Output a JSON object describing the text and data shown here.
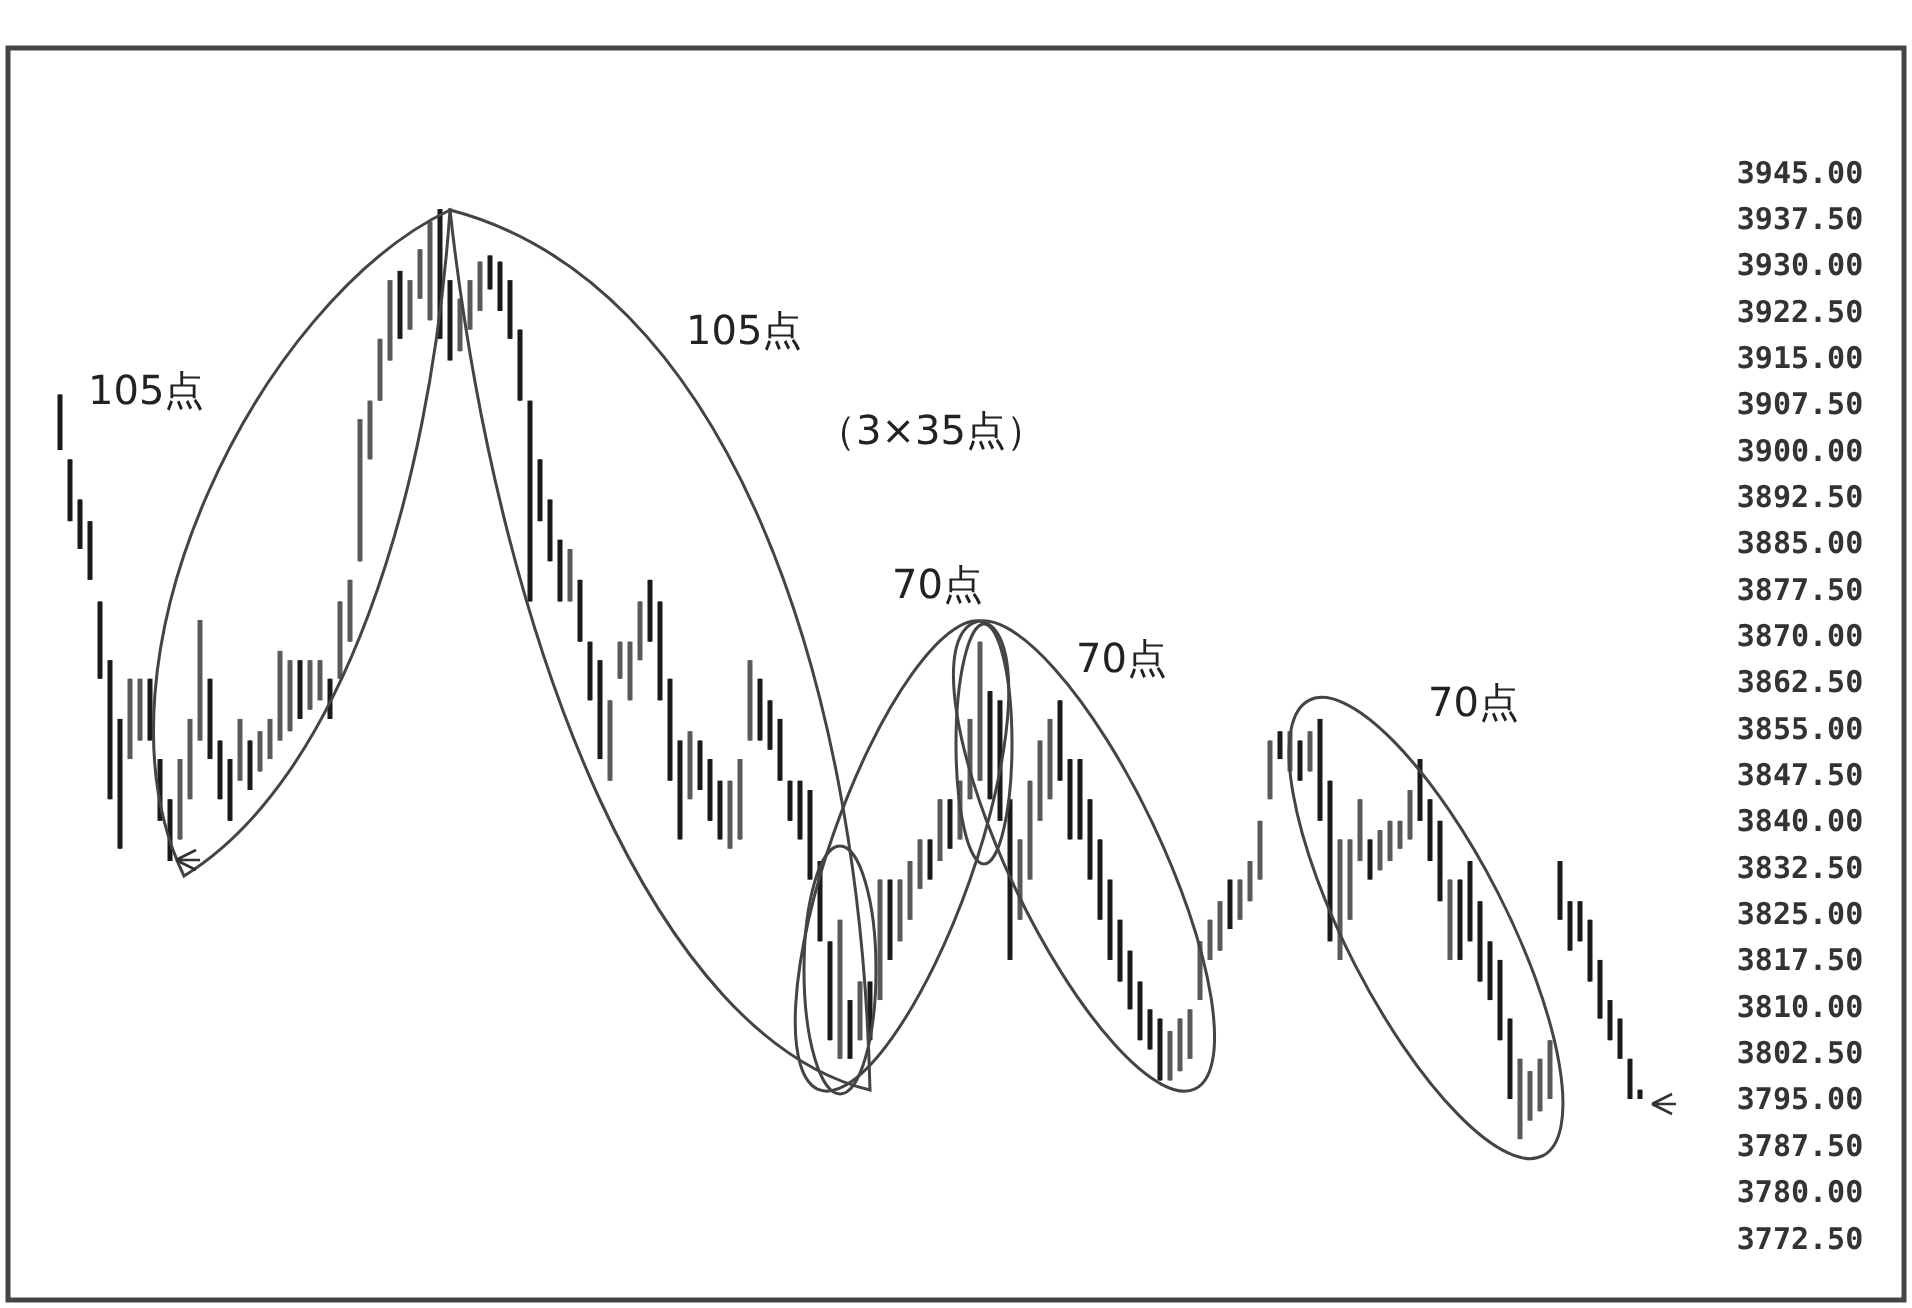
{
  "chart_data": {
    "type": "candlestick",
    "categories": [
      null,
      null,
      null,
      null,
      null,
      null,
      null,
      null,
      null,
      null,
      null,
      null,
      null,
      null,
      null,
      null,
      null,
      null,
      null,
      null,
      null,
      null,
      null,
      null,
      null,
      null,
      null,
      null,
      null,
      null,
      null,
      null,
      null,
      null,
      null,
      null,
      null,
      null,
      null,
      null,
      null,
      null,
      null,
      null,
      null,
      null,
      null,
      null,
      null,
      null,
      null,
      null,
      null,
      null,
      null,
      null,
      null,
      null,
      null,
      null,
      null,
      null,
      null,
      null,
      null,
      null,
      null,
      null,
      null,
      null,
      null,
      null,
      null,
      null,
      null,
      null,
      null,
      null,
      null,
      null,
      null,
      null,
      null,
      null,
      null,
      null,
      null,
      null,
      null,
      null,
      null,
      null,
      null,
      null,
      null,
      null,
      null,
      null,
      null,
      null,
      null,
      null,
      null,
      null,
      null,
      null,
      null,
      null,
      null,
      null,
      null,
      null,
      null,
      null,
      null,
      null,
      null,
      null,
      null,
      null,
      null,
      null,
      null,
      null,
      null,
      null,
      null,
      null,
      null,
      null,
      null,
      null,
      null,
      null,
      null,
      null,
      null,
      null,
      null,
      null,
      null,
      null,
      null,
      null,
      null,
      null,
      null,
      null,
      null,
      null,
      null,
      null,
      null,
      null,
      null,
      null,
      null,
      null,
      null
    ],
    "ohlc": [
      [
        3909,
        3909,
        3900,
        3900
      ],
      [
        3898.5,
        3898.5,
        3888.5,
        3888.5
      ],
      [
        3892,
        3892,
        3884,
        3884
      ],
      [
        3888.5,
        3888.5,
        3879,
        3879
      ],
      [
        3875.5,
        3875.5,
        3863,
        3863
      ],
      [
        3866,
        3866,
        3843.5,
        3843.5
      ],
      [
        3856.5,
        3856.5,
        3835.5,
        3835.5
      ],
      [
        3850,
        3863,
        3850,
        3863
      ],
      [
        3853,
        3863,
        3853,
        3863
      ],
      [
        3863,
        3863,
        3853,
        3853
      ],
      [
        3850,
        3850,
        3840,
        3840
      ],
      [
        3843.5,
        3843.5,
        3833.5,
        3833.5
      ],
      [
        3837,
        3850,
        3837,
        3850
      ],
      [
        3843.5,
        3856.5,
        3843.5,
        3856.5
      ],
      [
        3853,
        3872.5,
        3853,
        3872.5
      ],
      [
        3863,
        3863,
        3850,
        3850
      ],
      [
        3853,
        3853,
        3843.5,
        3843.5
      ],
      [
        3850,
        3850,
        3840,
        3840
      ],
      [
        3846.5,
        3856.5,
        3846.5,
        3856.5
      ],
      [
        3853,
        3853,
        3845,
        3845
      ],
      [
        3848,
        3854.5,
        3848,
        3854.5
      ],
      [
        3850,
        3856.5,
        3850,
        3856.5
      ],
      [
        3853,
        3867.5,
        3853,
        3867.5
      ],
      [
        3854.5,
        3866,
        3854.5,
        3866
      ],
      [
        3866,
        3866,
        3856.5,
        3856.5
      ],
      [
        3858,
        3866,
        3858,
        3866
      ],
      [
        3859.5,
        3866,
        3859.5,
        3866
      ],
      [
        3863,
        3863,
        3856.5,
        3856.5
      ],
      [
        3863,
        3875.5,
        3863,
        3875.5
      ],
      [
        3869,
        3879,
        3869,
        3879
      ],
      [
        3882,
        3905,
        3882,
        3905
      ],
      [
        3898.5,
        3908,
        3898.5,
        3908
      ],
      [
        3908,
        3918,
        3908,
        3918
      ],
      [
        3914.5,
        3927.5,
        3914.5,
        3927.5
      ],
      [
        3929,
        3929,
        3918,
        3918
      ],
      [
        3919.5,
        3927.5,
        3919.5,
        3927.5
      ],
      [
        3924.5,
        3932.5,
        3924.5,
        3932.5
      ],
      [
        3921,
        3937,
        3921,
        3937
      ],
      [
        3939,
        3939,
        3918,
        3918
      ],
      [
        3927.5,
        3927.5,
        3914.5,
        3914.5
      ],
      [
        3916,
        3924.5,
        3916,
        3924.5
      ],
      [
        3919.5,
        3927.5,
        3919.5,
        3927.5
      ],
      [
        3922.5,
        3930.5,
        3922.5,
        3930.5
      ],
      [
        3931.5,
        3931.5,
        3926,
        3926
      ],
      [
        3930.5,
        3930.5,
        3922.5,
        3922.5
      ],
      [
        3927.5,
        3927.5,
        3918,
        3918
      ],
      [
        3919.5,
        3919.5,
        3908,
        3908
      ],
      [
        3908,
        3908,
        3875.5,
        3875.5
      ],
      [
        3898.5,
        3898.5,
        3888.5,
        3888.5
      ],
      [
        3892,
        3892,
        3882,
        3882
      ],
      [
        3885.5,
        3885.5,
        3875.5,
        3875.5
      ],
      [
        3875.5,
        3884,
        3875.5,
        3884
      ],
      [
        3879,
        3879,
        3869,
        3869
      ],
      [
        3869,
        3869,
        3859.5,
        3859.5
      ],
      [
        3866,
        3866,
        3850,
        3850
      ],
      [
        3846.5,
        3859.5,
        3846.5,
        3859.5
      ],
      [
        3863,
        3869,
        3863,
        3869
      ],
      [
        3859.5,
        3869,
        3859.5,
        3869
      ],
      [
        3866,
        3875.5,
        3866,
        3875.5
      ],
      [
        3879,
        3879,
        3869,
        3869
      ],
      [
        3875.5,
        3875.5,
        3859.5,
        3859.5
      ],
      [
        3863,
        3863,
        3846.5,
        3846.5
      ],
      [
        3853,
        3853,
        3837,
        3837
      ],
      [
        3843.5,
        3854.5,
        3843.5,
        3854.5
      ],
      [
        3853,
        3853,
        3845,
        3845
      ],
      [
        3850,
        3850,
        3840,
        3840
      ],
      [
        3846.5,
        3846.5,
        3837,
        3837
      ],
      [
        3835.5,
        3846.5,
        3835.5,
        3846.5
      ],
      [
        3837,
        3850,
        3837,
        3850
      ],
      [
        3853,
        3866,
        3853,
        3866
      ],
      [
        3863,
        3863,
        3853,
        3853
      ],
      [
        3859.5,
        3859.5,
        3851.5,
        3851.5
      ],
      [
        3856.5,
        3856.5,
        3846.5,
        3846.5
      ],
      [
        3846.5,
        3846.5,
        3840,
        3840
      ],
      [
        3846.5,
        3846.5,
        3837,
        3837
      ],
      [
        3845,
        3845,
        3830.5,
        3830.5
      ],
      [
        3833.5,
        3833.5,
        3820.5,
        3820.5
      ],
      [
        3820.5,
        3820.5,
        3804.5,
        3804.5
      ],
      [
        3801.5,
        3824,
        3801.5,
        3824
      ],
      [
        3811,
        3811,
        3801.5,
        3801.5
      ],
      [
        3804.5,
        3814,
        3804.5,
        3814
      ],
      [
        3814,
        3814,
        3804.5,
        3804.5
      ],
      [
        3811,
        3830.5,
        3811,
        3830.5
      ],
      [
        3830.5,
        3830.5,
        3817.5,
        3817.5
      ],
      [
        3820.5,
        3830.5,
        3820.5,
        3830.5
      ],
      [
        3824,
        3833.5,
        3824,
        3833.5
      ],
      [
        3829,
        3837,
        3829,
        3837
      ],
      [
        3837,
        3837,
        3830.5,
        3830.5
      ],
      [
        3833.5,
        3843.5,
        3833.5,
        3843.5
      ],
      [
        3843.5,
        3843.5,
        3835.5,
        3835.5
      ],
      [
        3837,
        3846.5,
        3837,
        3846.5
      ],
      [
        3843.5,
        3856.5,
        3843.5,
        3856.5
      ],
      [
        3846.5,
        3869,
        3846.5,
        3869
      ],
      [
        3861,
        3861,
        3843.5,
        3843.5
      ],
      [
        3859.5,
        3859.5,
        3840,
        3840
      ],
      [
        3843.5,
        3843.5,
        3817.5,
        3817.5
      ],
      [
        3824,
        3837,
        3824,
        3837
      ],
      [
        3830.5,
        3846.5,
        3830.5,
        3846.5
      ],
      [
        3840,
        3853,
        3840,
        3853
      ],
      [
        3843.5,
        3856.5,
        3843.5,
        3856.5
      ],
      [
        3859.5,
        3859.5,
        3846.5,
        3846.5
      ],
      [
        3850,
        3850,
        3837,
        3837
      ],
      [
        3850,
        3850,
        3837,
        3837
      ],
      [
        3843.5,
        3843.5,
        3830.5,
        3830.5
      ],
      [
        3837,
        3837,
        3824,
        3824
      ],
      [
        3830.5,
        3830.5,
        3817.5,
        3817.5
      ],
      [
        3824,
        3824,
        3814,
        3814
      ],
      [
        3819,
        3819,
        3809.5,
        3809.5
      ],
      [
        3814,
        3814,
        3804.5,
        3804.5
      ],
      [
        3809.5,
        3809.5,
        3803,
        3803
      ],
      [
        3808,
        3808,
        3798,
        3798
      ],
      [
        3798,
        3806,
        3798,
        3806
      ],
      [
        3799.5,
        3808,
        3799.5,
        3808
      ],
      [
        3801.5,
        3809.5,
        3801.5,
        3809.5
      ],
      [
        3811,
        3820.5,
        3811,
        3820.5
      ],
      [
        3817.5,
        3824,
        3817.5,
        3824
      ],
      [
        3819,
        3827,
        3819,
        3827
      ],
      [
        3830.5,
        3830.5,
        3822.5,
        3822.5
      ],
      [
        3824,
        3830.5,
        3824,
        3830.5
      ],
      [
        3827,
        3833.5,
        3827,
        3833.5
      ],
      [
        3830.5,
        3840,
        3830.5,
        3840
      ],
      [
        3843.5,
        3853,
        3843.5,
        3853
      ],
      [
        3854.5,
        3854.5,
        3850,
        3850
      ],
      [
        3848,
        3854.5,
        3848,
        3854.5
      ],
      [
        3853,
        3853,
        3846.5,
        3846.5
      ],
      [
        3848,
        3854.5,
        3848,
        3854.5
      ],
      [
        3856.5,
        3856.5,
        3840,
        3840
      ],
      [
        3846.5,
        3846.5,
        3820.5,
        3820.5
      ],
      [
        3817.5,
        3837,
        3817.5,
        3837
      ],
      [
        3824,
        3837,
        3824,
        3837
      ],
      [
        3833.5,
        3843.5,
        3833.5,
        3843.5
      ],
      [
        3837,
        3837,
        3830.5,
        3830.5
      ],
      [
        3832,
        3838.5,
        3832,
        3838.5
      ],
      [
        3833.5,
        3840,
        3833.5,
        3840
      ],
      [
        3835.5,
        3840,
        3835.5,
        3840
      ],
      [
        3837,
        3845,
        3837,
        3845
      ],
      [
        3850,
        3850,
        3840,
        3840
      ],
      [
        3843.5,
        3843.5,
        3833.5,
        3833.5
      ],
      [
        3840,
        3840,
        3827,
        3827
      ],
      [
        3817.5,
        3830.5,
        3817.5,
        3830.5
      ],
      [
        3830.5,
        3830.5,
        3817.5,
        3817.5
      ],
      [
        3833.5,
        3833.5,
        3820.5,
        3820.5
      ],
      [
        3827,
        3827,
        3814,
        3814
      ],
      [
        3820.5,
        3820.5,
        3811,
        3811
      ],
      [
        3817.5,
        3817.5,
        3804.5,
        3804.5
      ],
      [
        3808,
        3808,
        3795,
        3795
      ],
      [
        3788.5,
        3801.5,
        3788.5,
        3801.5
      ],
      [
        3791.5,
        3799.5,
        3791.5,
        3799.5
      ],
      [
        3793,
        3801.5,
        3793,
        3801.5
      ],
      [
        3795,
        3804.5,
        3795,
        3804.5
      ],
      [
        3833.5,
        3833.5,
        3824,
        3824
      ],
      [
        3827,
        3827,
        3819,
        3819
      ],
      [
        3827,
        3827,
        3820.5,
        3820.5
      ],
      [
        3824,
        3824,
        3814,
        3814
      ],
      [
        3817.5,
        3817.5,
        3808,
        3808
      ],
      [
        3811,
        3811,
        3804.5,
        3804.5
      ],
      [
        3808,
        3808,
        3801.5,
        3801.5
      ],
      [
        3801.5,
        3801.5,
        3795,
        3795
      ],
      [
        3796.5,
        3796.5,
        3795,
        3795
      ]
    ],
    "ylim": [
      3772.5,
      3945
    ],
    "yticks": [
      {
        "value": 3945,
        "label": "3945.00"
      },
      {
        "value": 3937.5,
        "label": "3937.50"
      },
      {
        "value": 3930,
        "label": "3930.00"
      },
      {
        "value": 3922.5,
        "label": "3922.50"
      },
      {
        "value": 3915,
        "label": "3915.00"
      },
      {
        "value": 3907.5,
        "label": "3907.50"
      },
      {
        "value": 3900,
        "label": "3900.00"
      },
      {
        "value": 3892.5,
        "label": "3892.50"
      },
      {
        "value": 3885,
        "label": "3885.00"
      },
      {
        "value": 3877.5,
        "label": "3877.50"
      },
      {
        "value": 3870,
        "label": "3870.00"
      },
      {
        "value": 3862.5,
        "label": "3862.50"
      },
      {
        "value": 3855,
        "label": "3855.00"
      },
      {
        "value": 3847.5,
        "label": "3847.50"
      },
      {
        "value": 3840,
        "label": "3840.00"
      },
      {
        "value": 3832.5,
        "label": "3832.50"
      },
      {
        "value": 3825,
        "label": "3825.00"
      },
      {
        "value": 3817.5,
        "label": "3817.50"
      },
      {
        "value": 3810,
        "label": "3810.00"
      },
      {
        "value": 3802.5,
        "label": "3802.50"
      },
      {
        "value": 3795,
        "label": "3795.00"
      },
      {
        "value": 3787.5,
        "label": "3787.50"
      },
      {
        "value": 3780,
        "label": "3780.00"
      },
      {
        "value": 3772.5,
        "label": "3772.50"
      }
    ],
    "tick_labels": "y",
    "annotations": [
      "105点",
      "105点",
      "（3×35点）",
      "70点",
      "70点",
      "70点"
    ]
  }
}
